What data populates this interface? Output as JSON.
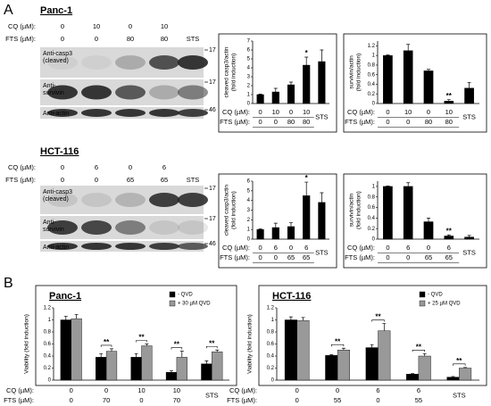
{
  "panels": [
    "A",
    "B"
  ],
  "blots": [
    {
      "title": "Panc-1",
      "rows": [
        {
          "label": "CQ (µM):",
          "values": [
            0,
            10,
            0,
            10
          ]
        },
        {
          "label": "FTS (µM):",
          "values": [
            0,
            0,
            80,
            80
          ]
        }
      ],
      "sts": "STS",
      "bands": [
        {
          "label_lines": [
            "Anti-casp3",
            "(cleaved)"
          ],
          "marker": 17
        },
        {
          "label_lines": [
            "Anti-",
            "survivin"
          ],
          "marker": 17
        },
        {
          "label_lines": [
            "Anti-actin"
          ],
          "marker": 46
        }
      ]
    },
    {
      "title": "HCT-116",
      "rows": [
        {
          "label": "CQ (µM):",
          "values": [
            0,
            6,
            0,
            6
          ]
        },
        {
          "label": "FTS (µM):",
          "values": [
            0,
            0,
            65,
            65
          ]
        }
      ],
      "sts": "STS",
      "bands": [
        {
          "label_lines": [
            "Anti-casp3",
            "(cleaved)"
          ],
          "marker": 17
        },
        {
          "label_lines": [
            "Anti-",
            "survivin"
          ],
          "marker": 17
        },
        {
          "label_lines": [
            "Anti-actin"
          ],
          "marker": 46
        }
      ]
    }
  ],
  "chart_data": [
    {
      "type": "bar",
      "ylabel_lines": [
        "cleaved casp3/actin",
        "(fold induction)"
      ],
      "ylim": [
        0,
        7
      ],
      "yticks": [
        0,
        1,
        2,
        3,
        4,
        5,
        6,
        7
      ],
      "categories": [
        null,
        null,
        null,
        null,
        "STS"
      ],
      "x_rows": [
        {
          "label": "CQ (µM):",
          "values": [
            0,
            10,
            0,
            10,
            null
          ]
        },
        {
          "label": "FTS (µM):",
          "values": [
            0,
            0,
            80,
            80,
            null
          ]
        }
      ],
      "series": [
        {
          "color": "#000000",
          "values": [
            1,
            1.3,
            2.1,
            4.3,
            4.7
          ],
          "errors": [
            0.05,
            0.4,
            0.3,
            0.9,
            1.3
          ]
        }
      ],
      "significance": [
        null,
        null,
        null,
        "*",
        null
      ]
    },
    {
      "type": "bar",
      "ylabel_lines": [
        "survivin/actin",
        "(fold induction)"
      ],
      "ylim": [
        0,
        1.3
      ],
      "yticks": [
        0,
        0.2,
        0.4,
        0.6,
        0.8,
        1,
        1.2
      ],
      "categories": [
        null,
        null,
        null,
        null,
        "STS"
      ],
      "x_rows": [
        {
          "label": "CQ (µM):",
          "values": [
            0,
            10,
            0,
            10,
            null
          ]
        },
        {
          "label": "FTS (µM):",
          "values": [
            0,
            0,
            80,
            80,
            null
          ]
        }
      ],
      "series": [
        {
          "color": "#000000",
          "values": [
            1,
            1.1,
            0.68,
            0.05,
            0.32
          ],
          "errors": [
            0.01,
            0.13,
            0.03,
            0.03,
            0.12
          ]
        }
      ],
      "significance": [
        null,
        null,
        null,
        "**",
        null
      ]
    },
    {
      "type": "bar",
      "ylabel_lines": [
        "cleaved casp3/actin",
        "(fold induction)"
      ],
      "ylim": [
        0,
        6
      ],
      "yticks": [
        0,
        1,
        2,
        3,
        4,
        5,
        6
      ],
      "categories": [
        null,
        null,
        null,
        null,
        "STS"
      ],
      "x_rows": [
        {
          "label": "CQ (µM):",
          "values": [
            0,
            6,
            0,
            6,
            null
          ]
        },
        {
          "label": "FTS (µM):",
          "values": [
            0,
            0,
            65,
            65,
            null
          ]
        }
      ],
      "series": [
        {
          "color": "#000000",
          "values": [
            1,
            1.2,
            1.3,
            4.5,
            3.8
          ],
          "errors": [
            0.05,
            0.45,
            0.4,
            1.4,
            1.0
          ]
        }
      ],
      "significance": [
        null,
        null,
        null,
        "*",
        null
      ]
    },
    {
      "type": "bar",
      "ylabel_lines": [
        "survivin/actin",
        "(fold induction)"
      ],
      "ylim": [
        0,
        1.1
      ],
      "yticks": [
        0,
        0.2,
        0.4,
        0.6,
        0.8,
        1
      ],
      "categories": [
        null,
        null,
        null,
        null,
        "STS"
      ],
      "x_rows": [
        {
          "label": "CQ (µM):",
          "values": [
            0,
            6,
            0,
            6,
            null
          ]
        },
        {
          "label": "FTS (µM):",
          "values": [
            0,
            0,
            65,
            65,
            null
          ]
        }
      ],
      "series": [
        {
          "color": "#000000",
          "values": [
            1,
            1,
            0.33,
            0.06,
            0.04
          ],
          "errors": [
            0.01,
            0.07,
            0.07,
            0.02,
            0.03
          ]
        }
      ],
      "significance": [
        null,
        null,
        null,
        "**",
        null
      ]
    },
    {
      "type": "bar",
      "title": "Panc-1",
      "ylabel_lines": [
        "Viability (fold induction)"
      ],
      "ylim": [
        0,
        1.2
      ],
      "yticks": [
        0,
        0.2,
        0.4,
        0.6,
        0.8,
        1,
        1.2
      ],
      "categories": [
        null,
        null,
        null,
        null,
        "STS"
      ],
      "x_rows": [
        {
          "label": "CQ (µM):",
          "values": [
            0,
            0,
            10,
            10,
            null
          ]
        },
        {
          "label": "FTS (µM):",
          "values": [
            0,
            70,
            0,
            70,
            null
          ]
        }
      ],
      "series": [
        {
          "name": "- QVD",
          "color": "#000000",
          "values": [
            1,
            0.38,
            0.38,
            0.13,
            0.27
          ],
          "errors": [
            0.06,
            0.06,
            0.06,
            0.03,
            0.05
          ]
        },
        {
          "name": "+ 30 µM QVD",
          "color": "#999999",
          "values": [
            1.02,
            0.48,
            0.57,
            0.38,
            0.47
          ],
          "errors": [
            0.07,
            0.04,
            0.03,
            0.1,
            0.03
          ]
        }
      ],
      "significance": [
        null,
        "**",
        "**",
        "**",
        "**"
      ]
    },
    {
      "type": "bar",
      "title": "HCT-116",
      "ylabel_lines": [
        "Viability (fold induction)"
      ],
      "ylim": [
        0,
        1.2
      ],
      "yticks": [
        0,
        0.2,
        0.4,
        0.6,
        0.8,
        1,
        1.2
      ],
      "categories": [
        null,
        null,
        null,
        null,
        "STS"
      ],
      "x_rows": [
        {
          "label": "CQ (µM):",
          "values": [
            0,
            0,
            6,
            6,
            null
          ]
        },
        {
          "label": "FTS (µM):",
          "values": [
            0,
            55,
            0,
            55,
            null
          ]
        }
      ],
      "series": [
        {
          "name": "- QVD",
          "color": "#000000",
          "values": [
            1,
            0.41,
            0.54,
            0.1,
            0.05
          ],
          "errors": [
            0.05,
            0.01,
            0.05,
            0.01,
            0.01
          ]
        },
        {
          "name": "+ 25 µM QVD",
          "color": "#999999",
          "values": [
            0.99,
            0.5,
            0.82,
            0.4,
            0.2
          ],
          "errors": [
            0.05,
            0.03,
            0.12,
            0.04,
            0.01
          ]
        }
      ],
      "significance": [
        null,
        "**",
        "**",
        "**",
        "**"
      ]
    }
  ]
}
